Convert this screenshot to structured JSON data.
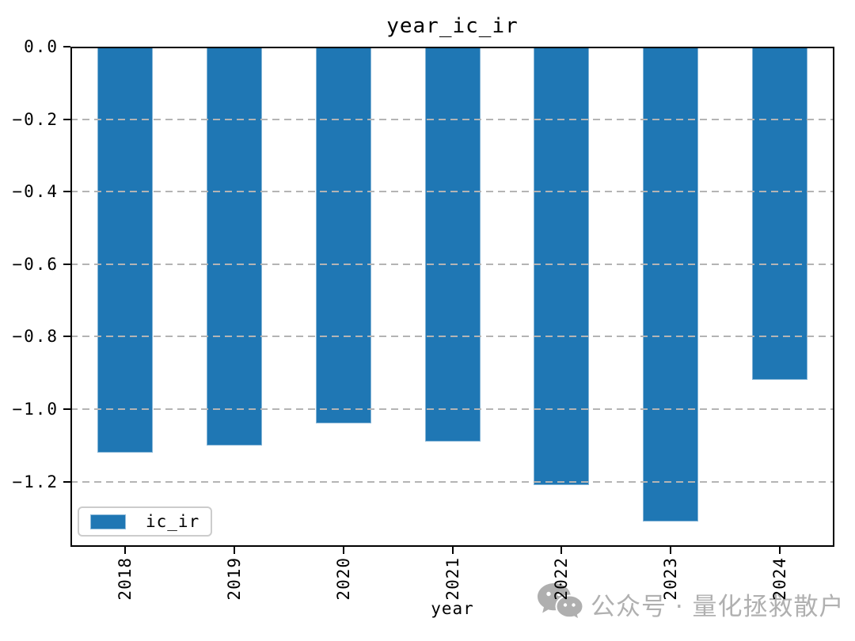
{
  "figure": {
    "title": "year_ic_ir"
  },
  "chart_data": {
    "type": "bar",
    "title": "year_ic_ir",
    "xlabel": "year",
    "ylabel": "",
    "categories": [
      "2018",
      "2019",
      "2020",
      "2021",
      "2022",
      "2023",
      "2024"
    ],
    "series": [
      {
        "name": "ic_ir",
        "values": [
          -1.12,
          -1.1,
          -1.04,
          -1.09,
          -1.21,
          -1.31,
          -0.92
        ]
      }
    ],
    "ylim": [
      -1.38,
      0.0
    ],
    "yticks": [
      0.0,
      -0.2,
      -0.4,
      -0.6,
      -0.8,
      -1.0,
      -1.2
    ],
    "ytick_labels": [
      "0.0",
      "−0.2",
      "−0.4",
      "−0.6",
      "−0.8",
      "−1.0",
      "−1.2"
    ],
    "grid": "horizontal-dashed",
    "grid_on_top_of_bars": true,
    "legend_position": "lower-left",
    "colors": {
      "bar": "#1f77b4",
      "grid": "#b4b4b4",
      "spine": "#000000"
    }
  },
  "legend": {
    "label": "ic_ir",
    "swatch_color": "#1f77b4"
  },
  "x_axis": {
    "label": "year"
  },
  "watermark": {
    "icon": "wechat-icon",
    "text": "公众号 · 量化拯救散户",
    "color": "#b0b0b0"
  }
}
